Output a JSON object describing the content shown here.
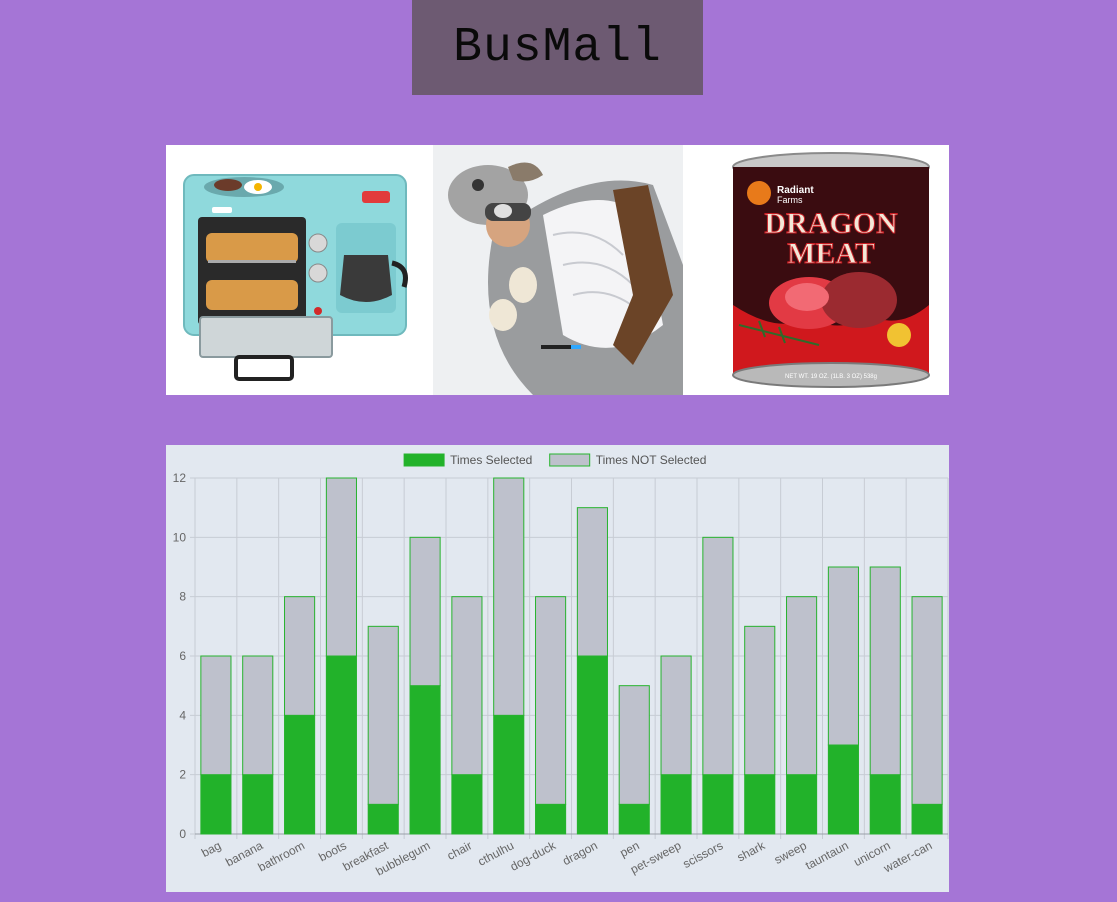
{
  "header": {
    "title": "BusMall"
  },
  "products": [
    {
      "name": "breakfast",
      "icon": "breakfast-toaster-image"
    },
    {
      "name": "tauntaun",
      "icon": "tauntaun-sleeping-bag-image"
    },
    {
      "name": "dragon",
      "icon": "dragon-meat-can-image"
    }
  ],
  "product_art": {
    "radiant_line1": "Radiant",
    "radiant_line2": "Farms",
    "dragon_word": "DRAGON",
    "meat_word": "MEAT",
    "net_weight": "NET WT. 19 OZ. (1LB. 3 OZ) 538g"
  },
  "colors": {
    "selected": "#22b22a",
    "not_selected": "#bec1cc",
    "border": "#27b32e"
  },
  "chart_data": {
    "type": "bar",
    "stacked": true,
    "legend_position": "top",
    "grid": true,
    "categories": [
      "bag",
      "banana",
      "bathroom",
      "boots",
      "breakfast",
      "bubblegum",
      "chair",
      "cthulhu",
      "dog-duck",
      "dragon",
      "pen",
      "pet-sweep",
      "scissors",
      "shark",
      "sweep",
      "tauntaun",
      "unicorn",
      "water-can"
    ],
    "series": [
      {
        "name": "Times Selected",
        "values": [
          2,
          2,
          4,
          6,
          1,
          5,
          2,
          4,
          1,
          6,
          1,
          2,
          2,
          2,
          2,
          3,
          2,
          1
        ]
      },
      {
        "name": "Times NOT Selected",
        "values": [
          4,
          4,
          4,
          6,
          6,
          5,
          6,
          8,
          7,
          5,
          4,
          4,
          8,
          5,
          6,
          6,
          7,
          7
        ]
      }
    ],
    "ylim": [
      0,
      12
    ],
    "yticks": [
      0,
      2,
      4,
      6,
      8,
      10,
      12
    ]
  }
}
